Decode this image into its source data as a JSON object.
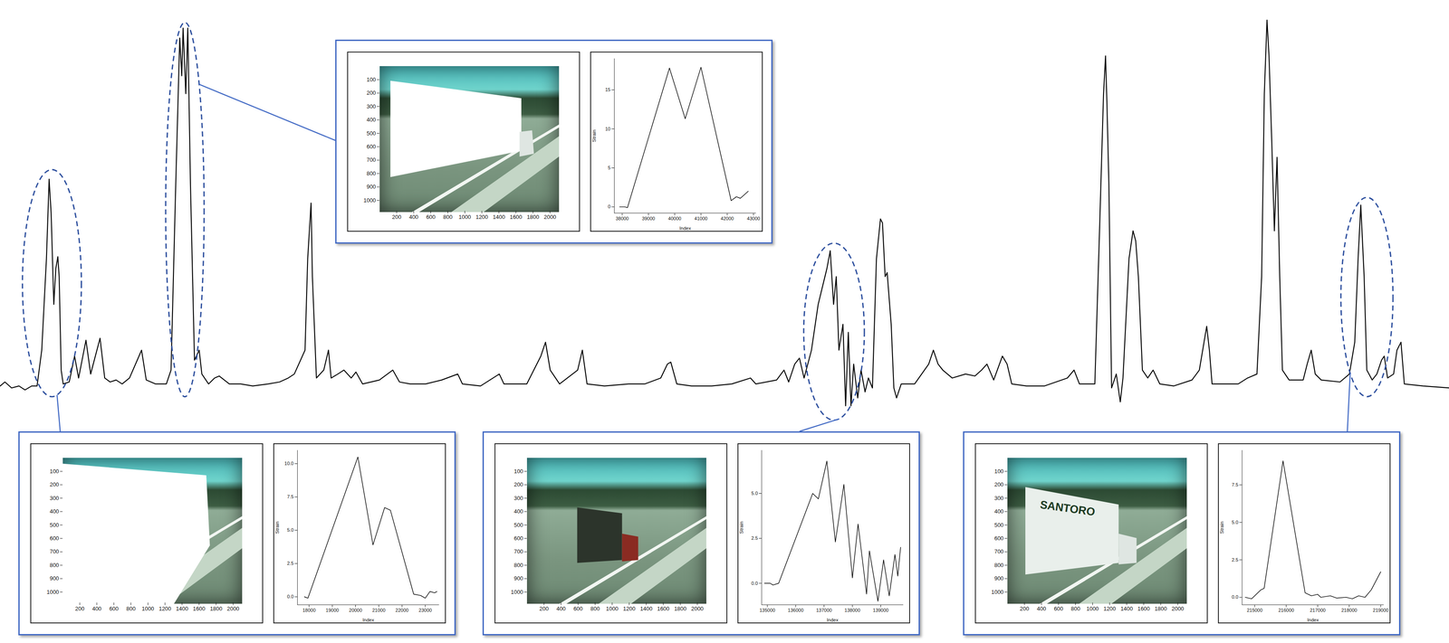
{
  "chart_data": [
    {
      "type": "line",
      "color": "#000000",
      "tick_labels": false,
      "line_style": "solid",
      "xlim": [
        12800,
        229100
      ],
      "ylim": [
        -1.1,
        19.5
      ],
      "x": [
        12800,
        13500,
        14500,
        15600,
        16500,
        17500,
        18300,
        19000,
        19700,
        20100,
        20400,
        20800,
        21100,
        21400,
        21600,
        21900,
        22200,
        23100,
        23900,
        24500,
        25600,
        26300,
        27700,
        28400,
        29200,
        30100,
        31000,
        32100,
        33900,
        34600,
        36000,
        37600,
        38300,
        39000,
        39600,
        39900,
        40100,
        40500,
        40800,
        41200,
        41800,
        42500,
        42900,
        43900,
        44800,
        45500,
        47000,
        48700,
        50500,
        52800,
        54500,
        55800,
        56700,
        58300,
        58700,
        59200,
        59400,
        60000,
        61100,
        61800,
        62200,
        63200,
        64100,
        65200,
        65900,
        66900,
        69400,
        71400,
        72400,
        74000,
        76300,
        78700,
        81100,
        81800,
        84500,
        87300,
        88000,
        91400,
        93500,
        94200,
        94900,
        96300,
        99000,
        99700,
        100400,
        103000,
        106600,
        109000,
        111400,
        112400,
        112900,
        113800,
        116000,
        119000,
        122000,
        124800,
        125600,
        128700,
        129800,
        130500,
        131400,
        132100,
        132800,
        133900,
        134900,
        136200,
        136700,
        137200,
        137600,
        138000,
        138600,
        139000,
        139400,
        139800,
        140200,
        140800,
        141300,
        141900,
        142400,
        143000,
        143600,
        144200,
        144500,
        144900,
        145200,
        145800,
        146200,
        146600,
        147300,
        149300,
        151400,
        152100,
        152800,
        153500,
        154900,
        156900,
        158300,
        159300,
        160100,
        161100,
        162400,
        163100,
        163800,
        166000,
        168700,
        172100,
        173100,
        173900,
        176200,
        176900,
        177500,
        177800,
        178000,
        178300,
        178700,
        179400,
        180000,
        180400,
        181300,
        181900,
        182300,
        182700,
        183300,
        184100,
        184900,
        185900,
        188000,
        190700,
        191800,
        192500,
        192900,
        193300,
        193700,
        197600,
        199000,
        200400,
        201100,
        201500,
        201900,
        202200,
        202600,
        203000,
        203400,
        203800,
        204200,
        205200,
        207300,
        207900,
        208500,
        209100,
        210000,
        212800,
        214200,
        215000,
        215500,
        215900,
        216400,
        216800,
        217600,
        218300,
        219000,
        219400,
        219900,
        220800,
        221300,
        221900,
        222400,
        225200,
        229100
      ],
      "values": [
        0.1,
        0.3,
        0.0,
        0.1,
        -0.1,
        0.1,
        0.1,
        1.9,
        6.5,
        10.5,
        8.8,
        4.2,
        6.0,
        6.6,
        5.6,
        0.9,
        0.2,
        0.3,
        1.6,
        0.5,
        2.4,
        0.7,
        2.5,
        0.5,
        0.3,
        0.4,
        0.2,
        0.5,
        1.9,
        0.4,
        0.2,
        0.2,
        0.9,
        10.2,
        17.6,
        15.7,
        18.1,
        14.8,
        18.1,
        10.2,
        1.4,
        1.9,
        0.7,
        0.2,
        0.5,
        0.6,
        0.2,
        0.2,
        0.1,
        0.2,
        0.3,
        0.5,
        0.7,
        1.9,
        6.5,
        9.3,
        5.6,
        0.5,
        0.9,
        1.9,
        0.5,
        0.7,
        0.9,
        0.5,
        0.8,
        0.2,
        0.4,
        0.9,
        0.3,
        0.2,
        0.2,
        0.4,
        0.7,
        0.2,
        0.1,
        0.7,
        0.2,
        0.2,
        1.6,
        2.3,
        0.9,
        0.2,
        0.9,
        1.9,
        0.2,
        0.1,
        0.2,
        0.2,
        0.5,
        1.2,
        1.3,
        0.2,
        0.1,
        0.1,
        0.2,
        0.5,
        0.2,
        0.4,
        0.9,
        0.3,
        1.2,
        1.5,
        0.5,
        1.9,
        4.2,
        6.0,
        6.9,
        4.2,
        5.6,
        1.9,
        3.2,
        -0.9,
        2.8,
        -0.9,
        1.2,
        -0.5,
        0.9,
        -0.2,
        0.5,
        0.0,
        6.5,
        8.5,
        8.3,
        5.6,
        5.8,
        3.2,
        0.0,
        -0.5,
        0.2,
        0.2,
        1.2,
        1.9,
        1.2,
        0.9,
        0.5,
        0.7,
        0.6,
        0.9,
        1.2,
        0.4,
        1.6,
        1.2,
        0.2,
        0.1,
        0.1,
        0.5,
        0.9,
        0.2,
        0.2,
        7.9,
        14.8,
        16.7,
        14.4,
        10.2,
        0.0,
        0.7,
        -0.7,
        0.5,
        6.5,
        7.9,
        7.4,
        5.6,
        0.9,
        0.5,
        0.9,
        0.2,
        0.1,
        0.4,
        0.9,
        2.3,
        3.1,
        1.9,
        0.2,
        0.2,
        0.5,
        0.7,
        5.6,
        14.8,
        18.5,
        16.7,
        12.5,
        7.9,
        11.6,
        5.6,
        0.9,
        0.4,
        0.4,
        1.2,
        1.9,
        0.7,
        0.4,
        0.3,
        0.7,
        2.3,
        6.5,
        9.2,
        5.6,
        0.9,
        0.4,
        0.7,
        1.4,
        1.6,
        0.5,
        0.7,
        1.9,
        2.3,
        0.2,
        0.1,
        0.0
      ]
    },
    {
      "type": "image",
      "xlim": [
        0,
        2090
      ],
      "ylim": [
        0,
        1080
      ],
      "xticks": [
        200,
        400,
        600,
        800,
        1000,
        1200,
        1400,
        1600,
        1800,
        2000
      ],
      "yticks": [
        100,
        200,
        300,
        400,
        500,
        600,
        700,
        800,
        900,
        1000
      ]
    },
    {
      "type": "line",
      "color": "#000000",
      "x_label": "Index",
      "y_label": "Strain",
      "xlim": [
        17500,
        23600
      ],
      "ylim": [
        -0.6,
        11.0
      ],
      "xticks": [
        18000,
        19000,
        20000,
        21000,
        22000,
        23000
      ],
      "yticks": [
        {
          "value": 0,
          "label": "0.0"
        },
        2.5,
        {
          "value": 5,
          "label": "5.0"
        },
        7.5,
        {
          "value": 10,
          "label": "10.0"
        }
      ],
      "x": [
        17800,
        17950,
        20100,
        20750,
        21250,
        21500,
        22500,
        22800,
        23000,
        23200,
        23400,
        23500
      ],
      "values": [
        0.0,
        -0.1,
        10.5,
        3.9,
        6.7,
        6.5,
        0.2,
        0.1,
        -0.1,
        0.4,
        0.3,
        0.4
      ]
    },
    {
      "type": "image",
      "xlim": [
        0,
        2090
      ],
      "ylim": [
        0,
        1080
      ],
      "xticks": [
        200,
        400,
        600,
        800,
        1000,
        1200,
        1400,
        1600,
        1800,
        2000
      ],
      "yticks": [
        100,
        200,
        300,
        400,
        500,
        600,
        700,
        800,
        900,
        1000
      ]
    },
    {
      "type": "line",
      "color": "#000000",
      "x_label": "Index",
      "y_label": "Strain",
      "xlim": [
        37700,
        43100
      ],
      "ylim": [
        -0.8,
        19.0
      ],
      "xticks": [
        38000,
        39000,
        40000,
        41000,
        42000,
        43000
      ],
      "yticks": [
        0,
        5,
        10,
        15
      ],
      "x": [
        37900,
        38100,
        38200,
        39800,
        40400,
        41000,
        42150,
        42350,
        42500,
        42800
      ],
      "values": [
        0.0,
        0.0,
        -0.1,
        17.8,
        11.3,
        17.9,
        0.8,
        1.3,
        1.1,
        2.0
      ]
    },
    {
      "type": "image",
      "xlim": [
        0,
        2090
      ],
      "ylim": [
        0,
        1080
      ],
      "xticks": [
        200,
        400,
        600,
        800,
        1000,
        1200,
        1400,
        1600,
        1800,
        2000
      ],
      "yticks": [
        100,
        200,
        300,
        400,
        500,
        600,
        700,
        800,
        900,
        1000
      ]
    },
    {
      "type": "line",
      "color": "#000000",
      "x_label": "Index",
      "y_label": "Strain",
      "xlim": [
        134800,
        139800
      ],
      "ylim": [
        -1.2,
        7.4
      ],
      "xticks": [
        135000,
        136000,
        137000,
        138000,
        139000
      ],
      "yticks": [
        {
          "value": 0,
          "label": "0.0"
        },
        2.5,
        {
          "value": 5,
          "label": "5.0"
        }
      ],
      "x": [
        134900,
        135100,
        135200,
        135400,
        136600,
        136800,
        137100,
        137400,
        137700,
        138000,
        138200,
        138500,
        138600,
        138900,
        139100,
        139300,
        139500,
        139600,
        139700
      ],
      "values": [
        0.0,
        0.0,
        -0.1,
        0.0,
        5.0,
        4.7,
        6.8,
        2.3,
        5.5,
        0.3,
        3.3,
        -0.6,
        1.8,
        -1.0,
        1.3,
        -0.7,
        1.6,
        0.4,
        2.0
      ]
    },
    {
      "type": "image",
      "xlim": [
        0,
        2090
      ],
      "ylim": [
        0,
        1080
      ],
      "xticks": [
        200,
        400,
        600,
        800,
        1000,
        1200,
        1400,
        1600,
        1800,
        2000
      ],
      "yticks": [
        100,
        200,
        300,
        400,
        500,
        600,
        700,
        800,
        900,
        1000
      ],
      "annotations": [
        "SANTORO"
      ]
    },
    {
      "type": "line",
      "color": "#000000",
      "x_label": "Index",
      "y_label": "Strain",
      "xlim": [
        214600,
        219100
      ],
      "ylim": [
        -0.5,
        9.8
      ],
      "xticks": [
        215000,
        216000,
        217000,
        218000,
        219000
      ],
      "yticks": [
        {
          "value": 0,
          "label": "0.0"
        },
        2.5,
        {
          "value": 5,
          "label": "5.0"
        },
        7.5
      ],
      "x": [
        214700,
        214900,
        215200,
        215300,
        215900,
        216600,
        216800,
        217000,
        217100,
        217400,
        217600,
        217900,
        218100,
        218300,
        218500,
        218700,
        219000
      ],
      "values": [
        0.0,
        -0.1,
        0.5,
        0.6,
        9.1,
        0.3,
        0.1,
        0.2,
        0.0,
        0.1,
        -0.05,
        0.0,
        -0.1,
        0.1,
        0.0,
        0.5,
        1.7
      ]
    }
  ]
}
